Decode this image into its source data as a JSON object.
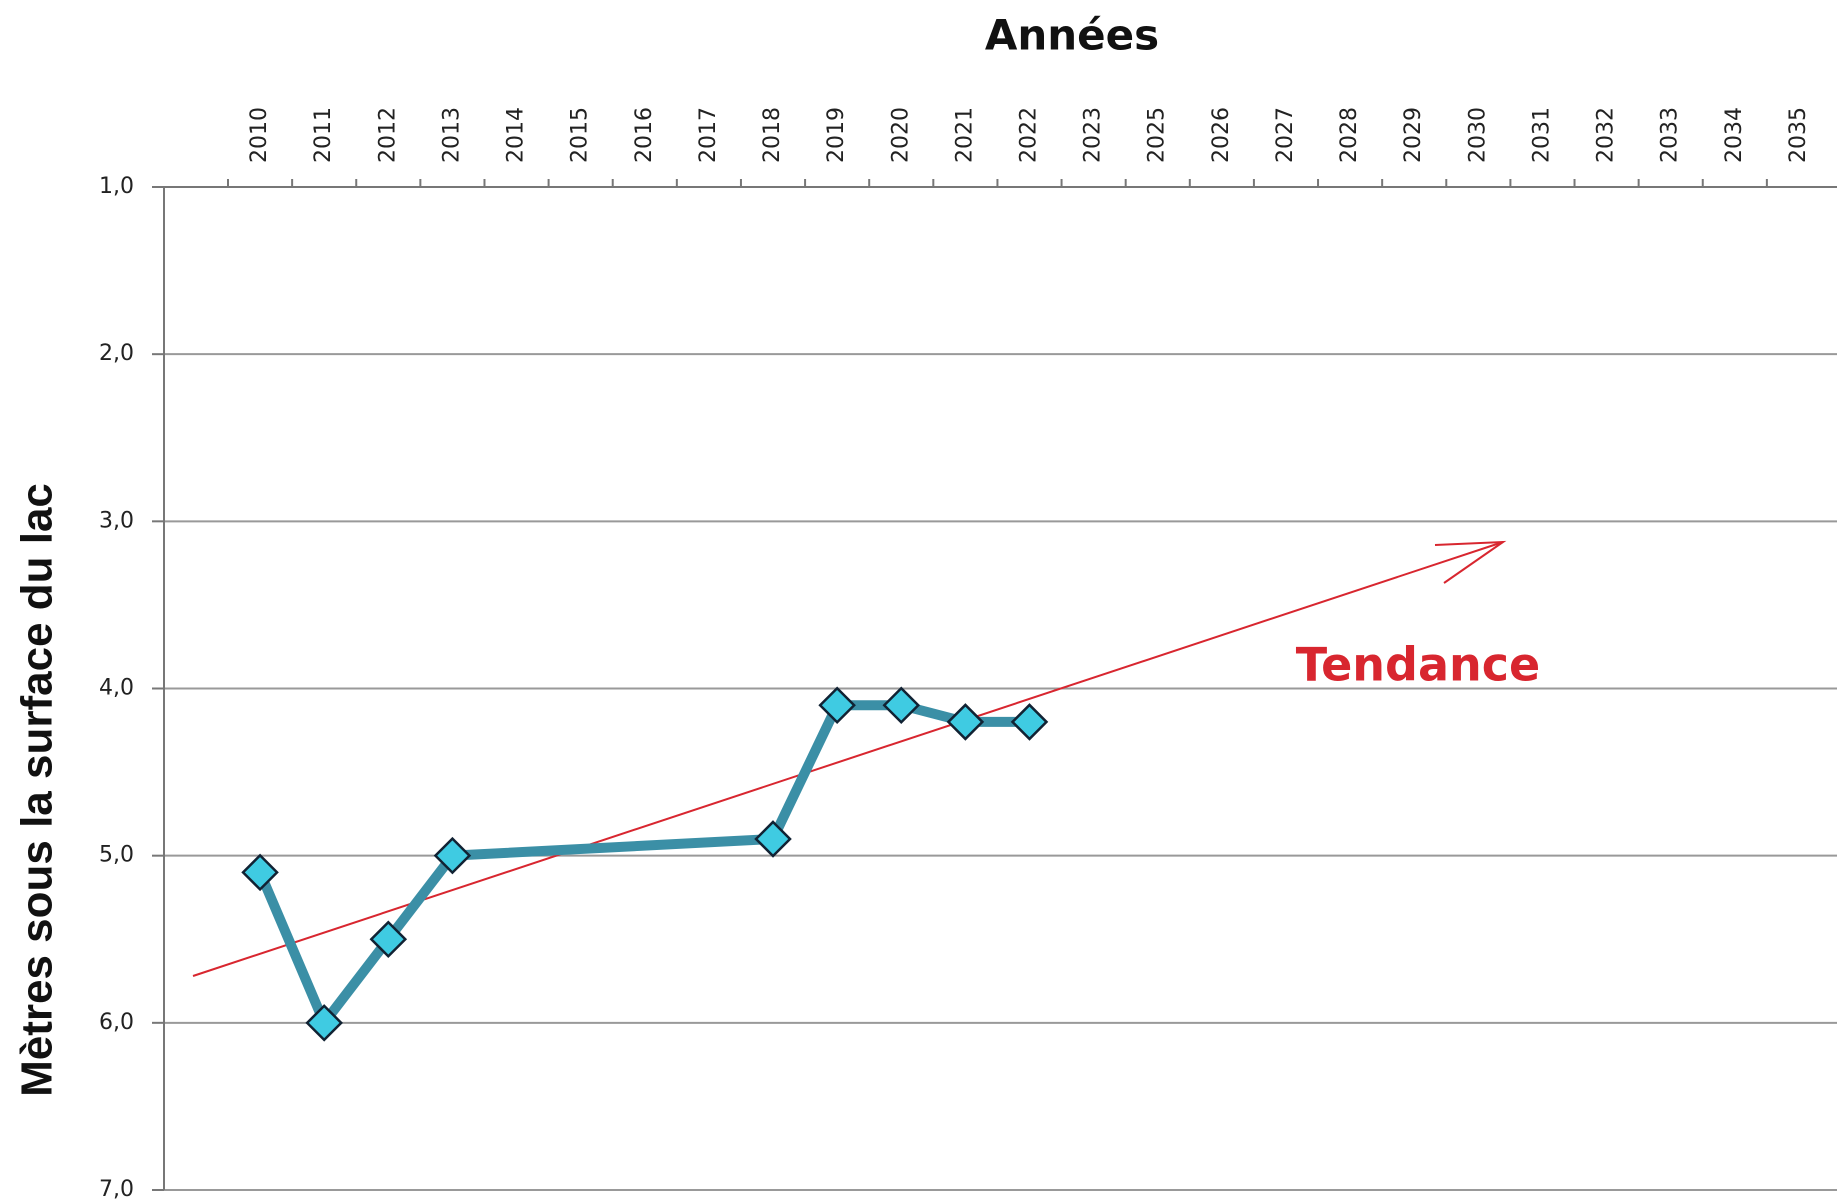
{
  "chart_data": {
    "type": "line",
    "title": "Années",
    "y_label": "Mètres  sous la surface du lac",
    "categories": [
      "2010",
      "2011",
      "2012",
      "2013",
      "2014",
      "2015",
      "2016",
      "2017",
      "2018",
      "2019",
      "2020",
      "2021",
      "2022",
      "2023",
      "2025",
      "2026",
      "2027",
      "2028",
      "2029",
      "2030",
      "2031",
      "2032",
      "2033",
      "2034",
      "2035"
    ],
    "series": [
      {
        "color": "#3b8fa6",
        "marker_color": "#3fcbe2",
        "values": [
          5.1,
          6.0,
          5.5,
          5.0,
          null,
          null,
          null,
          null,
          4.9,
          4.1,
          4.1,
          4.2,
          4.2,
          null,
          null,
          null,
          null,
          null,
          null,
          null,
          null,
          null,
          null,
          null,
          null
        ]
      }
    ],
    "span_gaps": true,
    "ylim": [
      7,
      1
    ],
    "y_inverted": true,
    "yticks": [
      {
        "value": 1,
        "label": "1,0"
      },
      {
        "value": 2,
        "label": "2,0"
      },
      {
        "value": 3,
        "label": "3,0"
      },
      {
        "value": 4,
        "label": "4,0"
      },
      {
        "value": 5,
        "label": "5,0"
      },
      {
        "value": 6,
        "label": "6,0"
      },
      {
        "value": 7,
        "label": "7,0"
      }
    ],
    "grid": true,
    "x_axis_position": "top",
    "annotations": [
      {
        "text": "Tendance",
        "color": "#d8262f"
      }
    ]
  }
}
